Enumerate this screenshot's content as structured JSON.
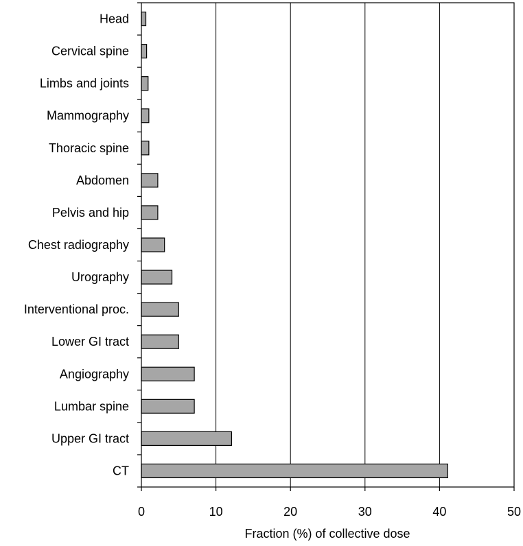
{
  "chart_data": {
    "type": "bar",
    "orientation": "horizontal",
    "title": "",
    "xlabel": "Fraction (%) of collective dose",
    "ylabel": "",
    "xlim": [
      0,
      50
    ],
    "xticks": [
      0,
      10,
      20,
      30,
      40,
      50
    ],
    "xtick_labels": [
      "0",
      "10",
      "20",
      "30",
      "40",
      "50"
    ],
    "grid": "vertical",
    "legend": "none",
    "bar_color": "#a6a6a6",
    "categories": [
      "Head",
      "Cervical spine",
      "Limbs and joints",
      "Mammography",
      "Thoracic spine",
      "Abdomen",
      "Pelvis and hip",
      "Chest radiography",
      "Urography",
      "Interventional proc.",
      "Lower GI tract",
      "Angiography",
      "Lumbar spine",
      "Upper GI tract",
      "CT"
    ],
    "values": [
      0.6,
      0.7,
      0.9,
      1,
      1,
      2.2,
      2.2,
      3.1,
      4.1,
      5,
      5,
      7.1,
      7.1,
      12.1,
      41.1
    ]
  }
}
